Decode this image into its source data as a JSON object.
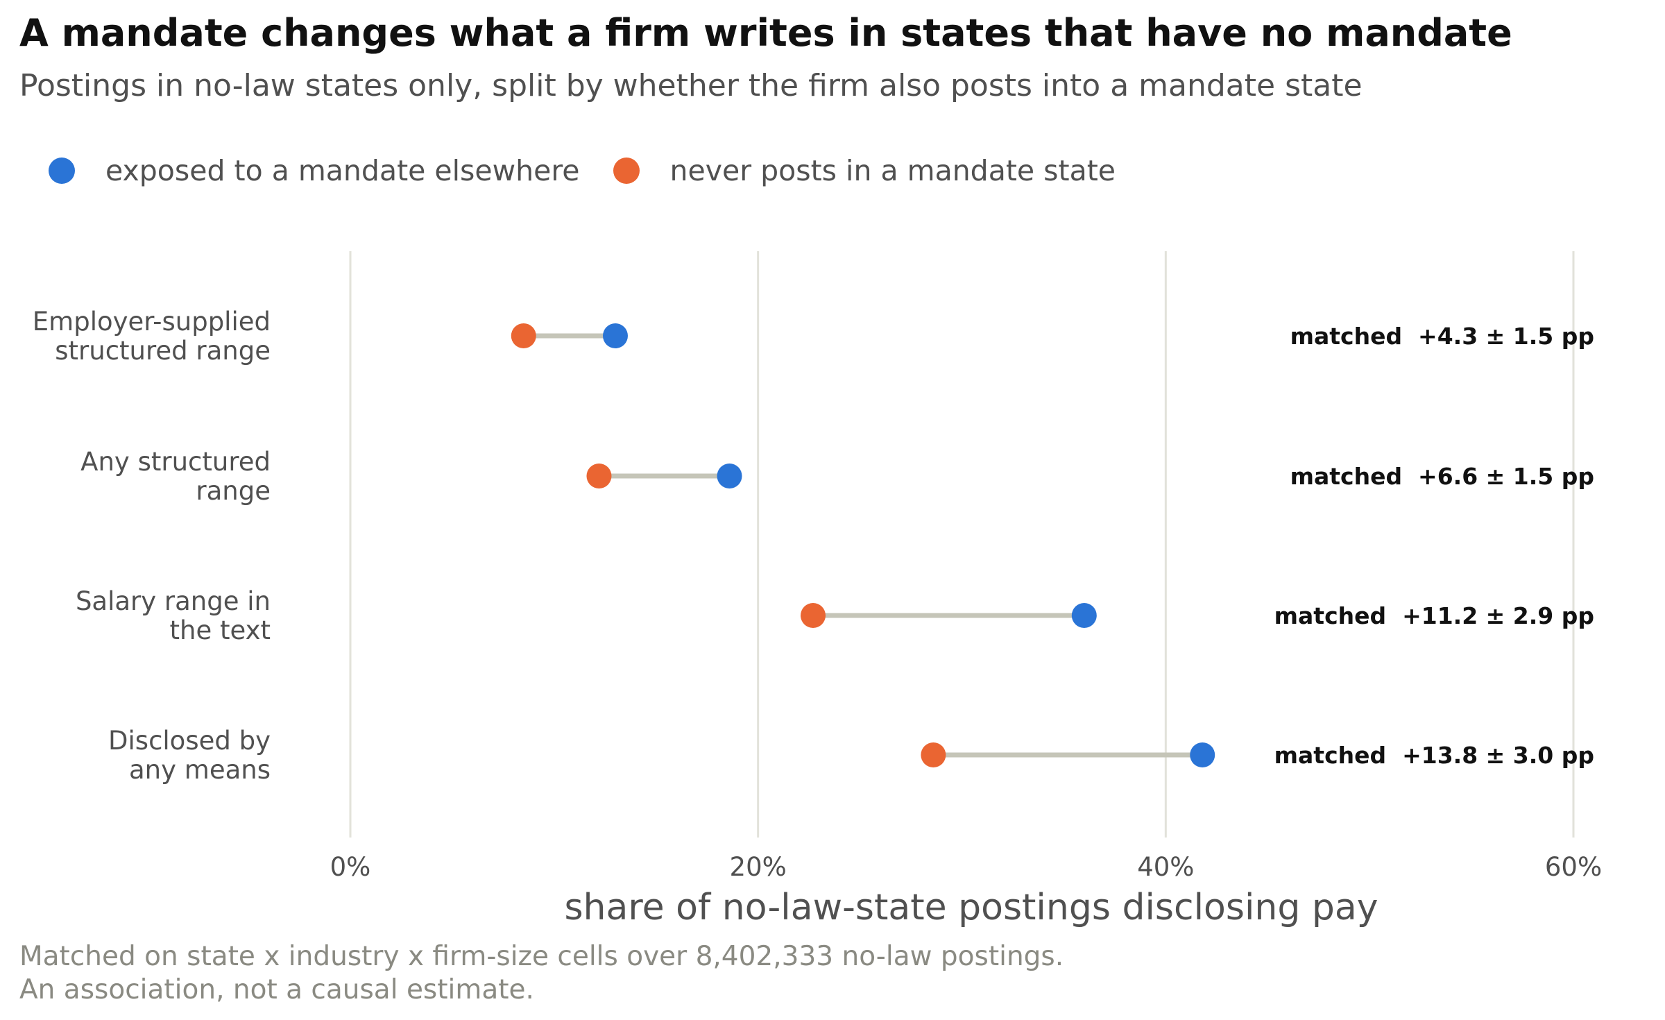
{
  "chart_data": {
    "type": "dumbbell",
    "title": "A mandate changes what a firm writes in states that have no mandate",
    "subtitle": "Postings in no-law states only, split by whether the firm also posts into a mandate state",
    "xlabel": "share of no-law-state postings disclosing pay",
    "ylabel": "",
    "xlim": [
      0,
      60
    ],
    "xticks": [
      0,
      20,
      40,
      60
    ],
    "xtick_labels": [
      "0%",
      "20%",
      "40%",
      "60%"
    ],
    "grid": "vertical",
    "legend_placement": "top-left",
    "series": [
      {
        "name": "exposed to a mandate elsewhere",
        "color": "#2a74d6"
      },
      {
        "name": "never posts in a mandate state",
        "color": "#ea6532"
      }
    ],
    "rows": [
      {
        "label_lines": [
          "Employer-supplied",
          "structured range"
        ],
        "exposed": 13.0,
        "never": 8.5,
        "annotation": "matched  +4.3 ± 1.5 pp"
      },
      {
        "label_lines": [
          "Any structured",
          "range"
        ],
        "exposed": 18.6,
        "never": 12.2,
        "annotation": "matched  +6.6 ± 1.5 pp"
      },
      {
        "label_lines": [
          "Salary range in",
          "the text"
        ],
        "exposed": 36.0,
        "never": 22.7,
        "annotation": "matched  +11.2 ± 2.9 pp"
      },
      {
        "label_lines": [
          "Disclosed by",
          "any means"
        ],
        "exposed": 41.8,
        "never": 28.6,
        "annotation": "matched  +13.8 ± 3.0 pp"
      }
    ],
    "connector_color": "#c5c5b8",
    "grid_color": "#e2e2da"
  },
  "footnote": {
    "line1": "Matched on state x industry x firm-size cells over 8,402,333 no-law postings.",
    "line2": "An association, not a causal estimate."
  }
}
